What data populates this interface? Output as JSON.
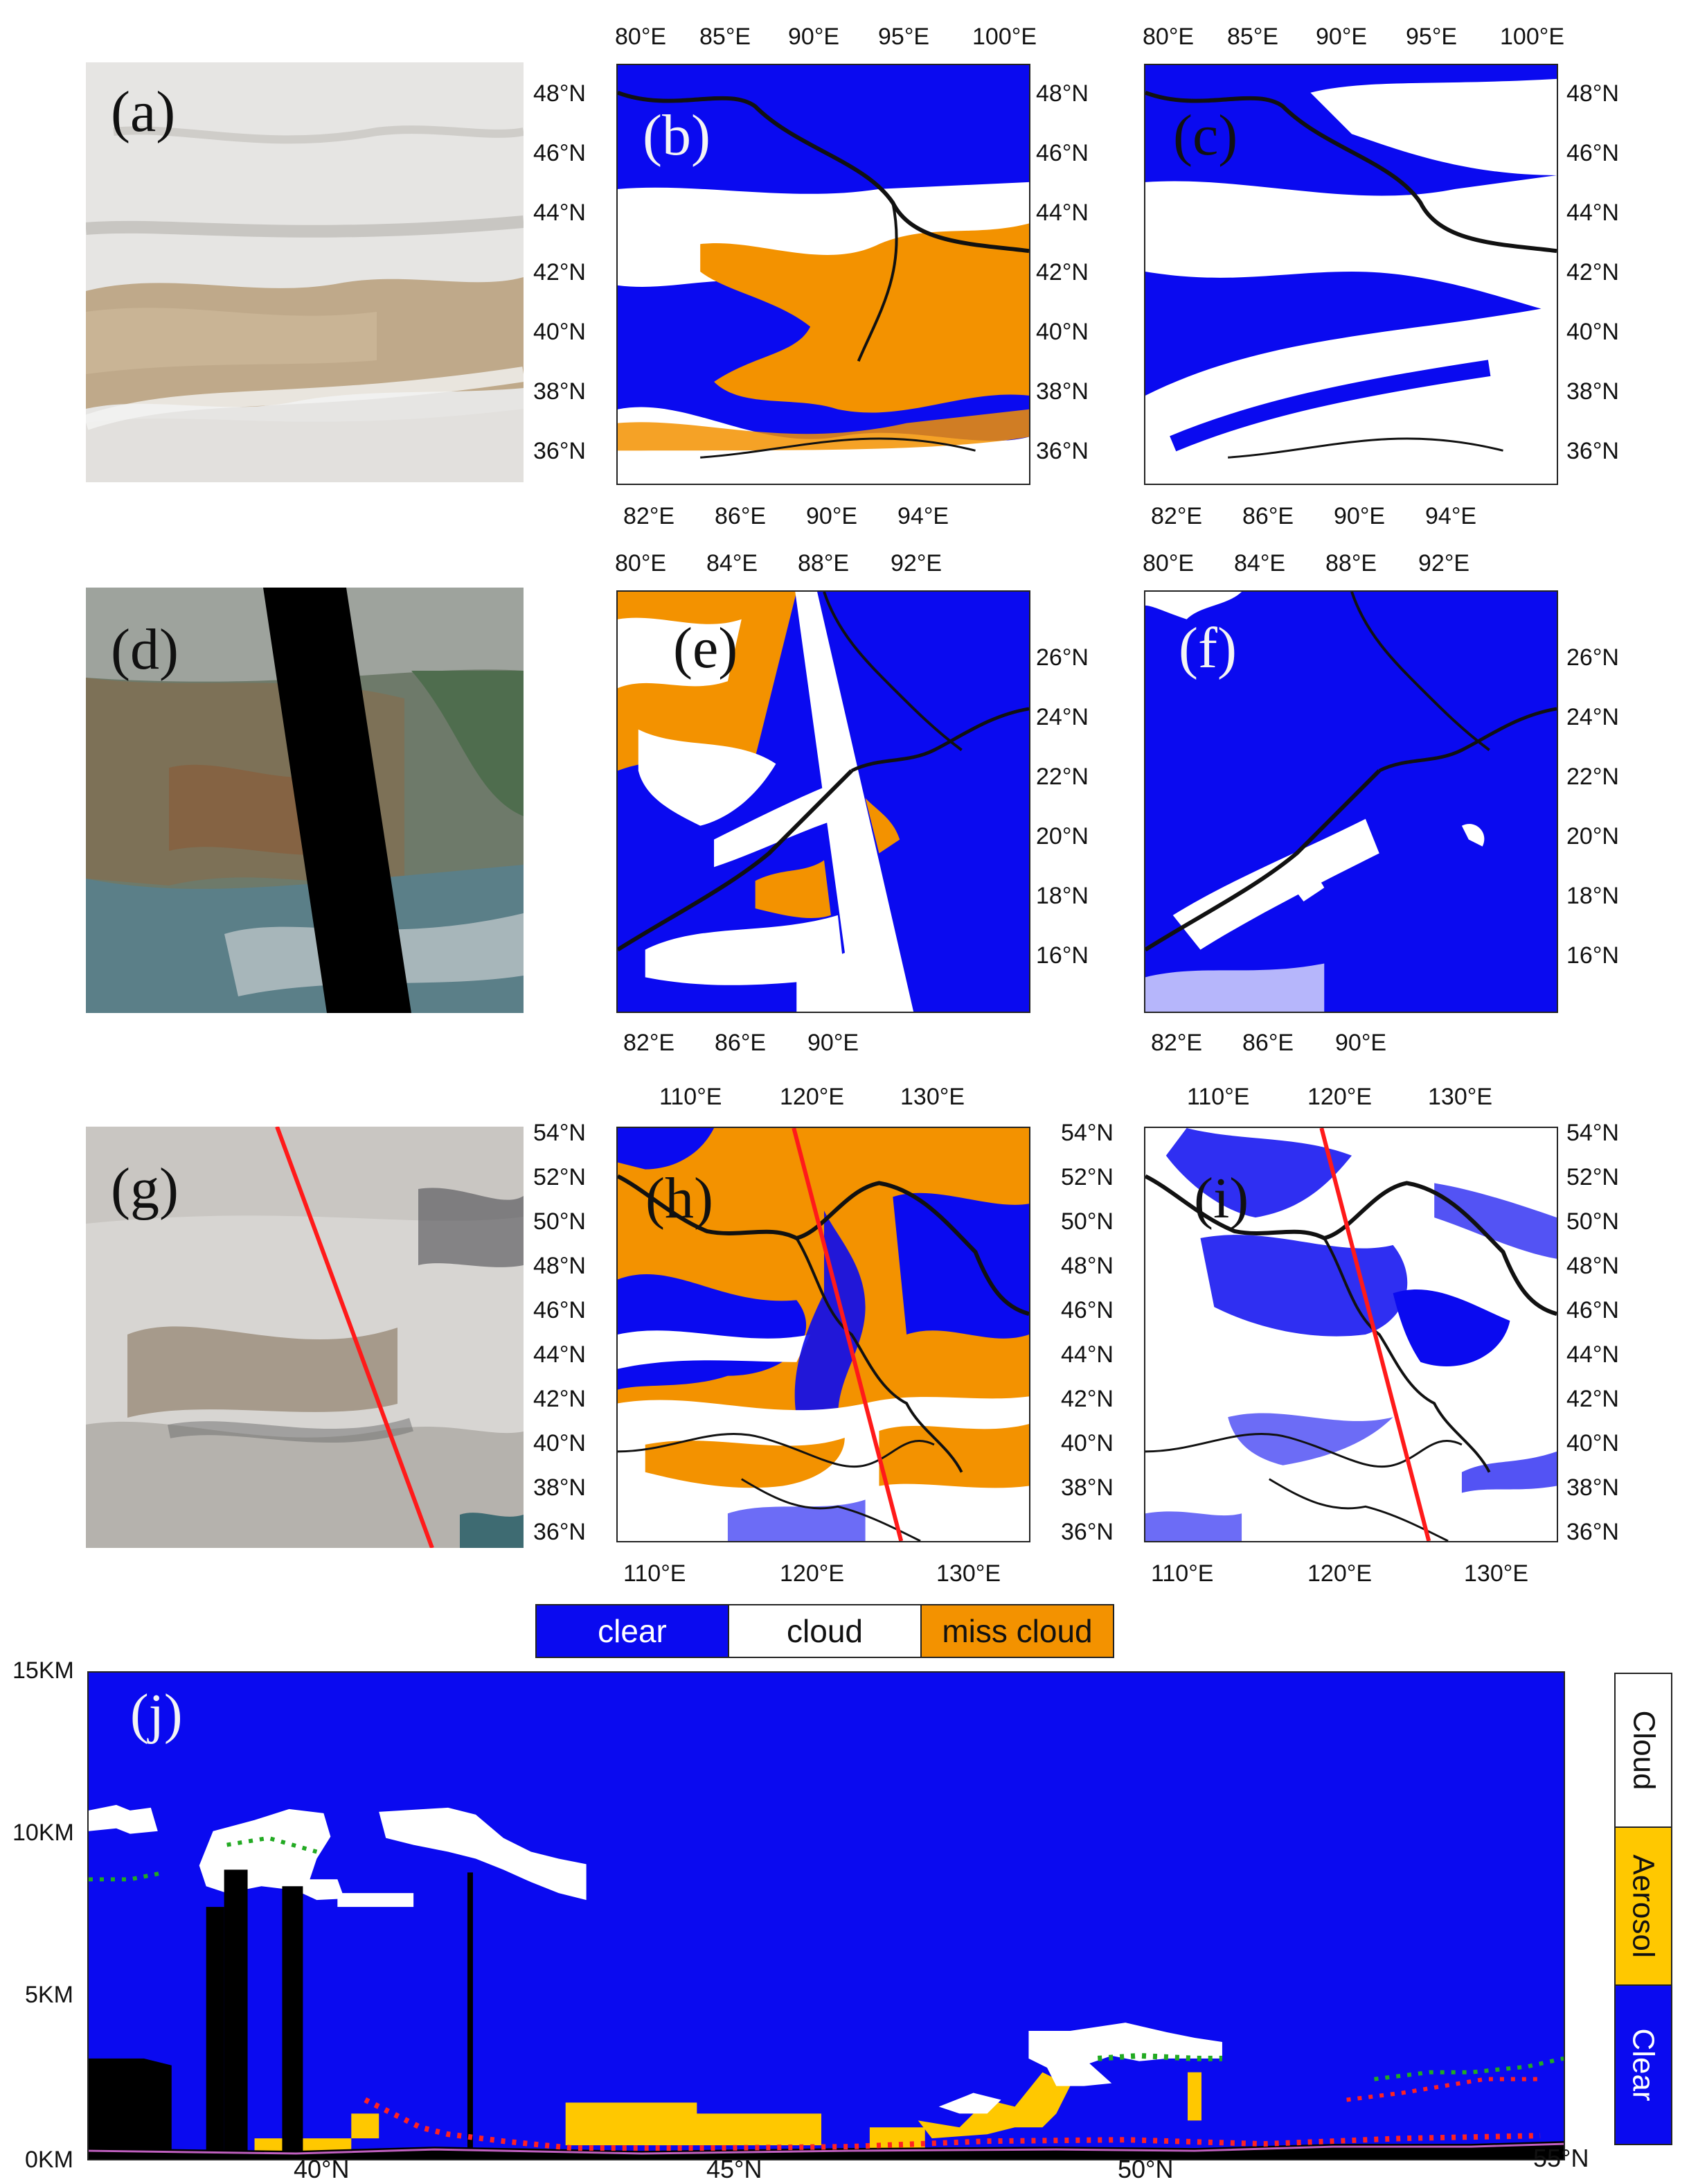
{
  "panels": {
    "a": "(a)",
    "b": "(b)",
    "c": "(c)",
    "d": "(d)",
    "e": "(e)",
    "f": "(f)",
    "g": "(g)",
    "h": "(h)",
    "i": "(i)",
    "j": "(j)"
  },
  "row1": {
    "top_lon": [
      "80°E",
      "85°E",
      "90°E",
      "95°E",
      "100°E"
    ],
    "bottom_lon": [
      "82°E",
      "86°E",
      "90°E",
      "94°E"
    ],
    "lat": [
      "48°N",
      "46°N",
      "44°N",
      "42°N",
      "40°N",
      "38°N",
      "36°N"
    ]
  },
  "row2": {
    "top_lon": [
      "80°E",
      "84°E",
      "88°E",
      "92°E"
    ],
    "bottom_lon": [
      "82°E",
      "86°E",
      "90°E"
    ],
    "lat": [
      "26°N",
      "24°N",
      "22°N",
      "20°N",
      "18°N",
      "16°N"
    ]
  },
  "row3": {
    "top_lon": [
      "110°E",
      "120°E",
      "130°E"
    ],
    "bottom_lon": [
      "110°E",
      "120°E",
      "130°E"
    ],
    "lat": [
      "54°N",
      "52°N",
      "50°N",
      "48°N",
      "46°N",
      "44°N",
      "42°N",
      "40°N",
      "38°N",
      "36°N"
    ]
  },
  "legend": {
    "clear": "clear",
    "cloud": "cloud",
    "miss": "miss cloud"
  },
  "profile": {
    "y_ticks": [
      "15KM",
      "10KM",
      "5KM",
      "0KM"
    ],
    "x_ticks": [
      "40°N",
      "45°N",
      "50°N",
      "55°N"
    ],
    "classes": [
      "Cloud",
      "Aerosol",
      "Clear"
    ]
  },
  "colors": {
    "clear": "#0a0af0",
    "cloud": "#ffffff",
    "miss_cloud": "#f39200",
    "aerosol": "#ffc800",
    "ground": "#000000",
    "satellite_track": "#ff1a1a"
  }
}
